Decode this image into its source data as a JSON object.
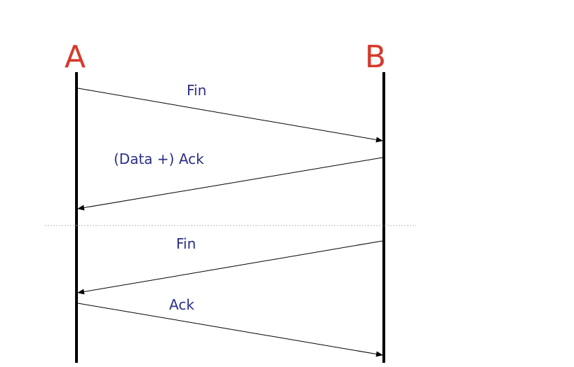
{
  "diagram": {
    "type": "sequence",
    "nodes": {
      "a": {
        "label": "A"
      },
      "b": {
        "label": "B"
      }
    },
    "messages": [
      {
        "label": "Fin",
        "from": "A",
        "to": "B"
      },
      {
        "label": "(Data +) Ack",
        "from": "B",
        "to": "A"
      },
      {
        "label": "Fin",
        "from": "B",
        "to": "A"
      },
      {
        "label": "Ack",
        "from": "A",
        "to": "B"
      }
    ],
    "colors": {
      "node_label": "#d63a2a",
      "message_label": "#2b2f86",
      "line": "#000000",
      "divider": "#b8b8b8"
    }
  }
}
